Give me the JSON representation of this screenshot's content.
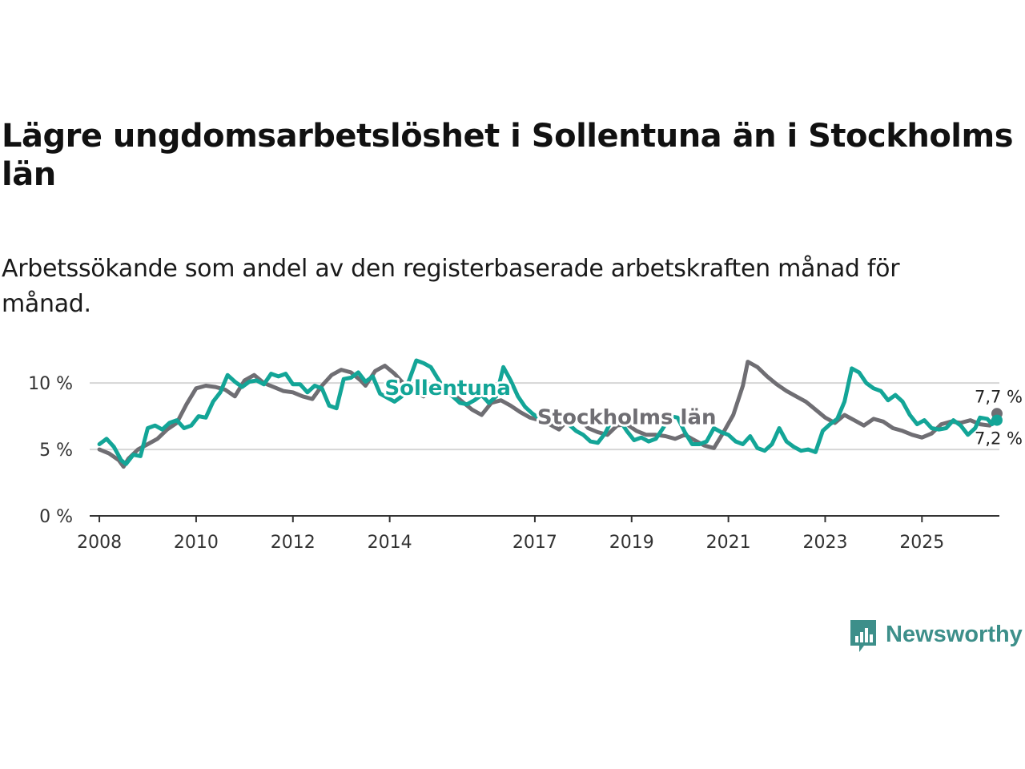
{
  "title": "Lägre ungdomsarbetslöshet i Sollentuna än i Stockholms län",
  "subtitle": "Arbetssökande som andel av den registerbaserade arbetskraften månad för månad.",
  "brand": {
    "name": "Newsworthy"
  },
  "chart_data": {
    "type": "line",
    "title": "Lägre ungdomsarbetslöshet i Sollentuna än i Stockholms län",
    "subtitle": "Arbetssökande som andel av den registerbaserade arbetskraften månad för månad.",
    "xlabel": "",
    "ylabel": "",
    "xlim": [
      2007.8,
      2026.6
    ],
    "ylim": [
      0,
      12
    ],
    "grid": true,
    "y_ticks": [
      {
        "value": 0,
        "label": "0 %"
      },
      {
        "value": 5,
        "label": "5 %"
      },
      {
        "value": 10,
        "label": "10 %"
      }
    ],
    "x_ticks": [
      {
        "value": 2008,
        "label": "2008"
      },
      {
        "value": 2010,
        "label": "2010"
      },
      {
        "value": 2012,
        "label": "2012"
      },
      {
        "value": 2014,
        "label": "2014"
      },
      {
        "value": 2017,
        "label": "2017"
      },
      {
        "value": 2019,
        "label": "2019"
      },
      {
        "value": 2021,
        "label": "2021"
      },
      {
        "value": 2023,
        "label": "2023"
      },
      {
        "value": 2025,
        "label": "2025"
      }
    ],
    "series": [
      {
        "name": "Stockholms län",
        "color": "#6f6e73",
        "label_x": 2018.9,
        "label_y": 6.9,
        "end_label": "7,7 %",
        "points": [
          [
            2008.0,
            5.0
          ],
          [
            2008.2,
            4.7
          ],
          [
            2008.4,
            4.2
          ],
          [
            2008.5,
            3.7
          ],
          [
            2008.6,
            4.3
          ],
          [
            2008.8,
            5.0
          ],
          [
            2009.0,
            5.4
          ],
          [
            2009.2,
            5.8
          ],
          [
            2009.4,
            6.5
          ],
          [
            2009.6,
            7.0
          ],
          [
            2009.8,
            8.4
          ],
          [
            2010.0,
            9.6
          ],
          [
            2010.2,
            9.8
          ],
          [
            2010.4,
            9.7
          ],
          [
            2010.6,
            9.5
          ],
          [
            2010.8,
            9.0
          ],
          [
            2011.0,
            10.2
          ],
          [
            2011.2,
            10.6
          ],
          [
            2011.4,
            10.0
          ],
          [
            2011.6,
            9.7
          ],
          [
            2011.8,
            9.4
          ],
          [
            2012.0,
            9.3
          ],
          [
            2012.2,
            9.0
          ],
          [
            2012.4,
            8.8
          ],
          [
            2012.6,
            9.8
          ],
          [
            2012.8,
            10.6
          ],
          [
            2013.0,
            11.0
          ],
          [
            2013.2,
            10.8
          ],
          [
            2013.4,
            10.2
          ],
          [
            2013.5,
            9.8
          ],
          [
            2013.7,
            10.9
          ],
          [
            2013.9,
            11.3
          ],
          [
            2014.1,
            10.7
          ],
          [
            2014.3,
            9.9
          ],
          [
            2014.5,
            9.4
          ],
          [
            2014.7,
            9.0
          ],
          [
            2014.9,
            9.6
          ],
          [
            2015.1,
            9.8
          ],
          [
            2015.3,
            9.2
          ],
          [
            2015.5,
            8.6
          ],
          [
            2015.7,
            8.0
          ],
          [
            2015.9,
            7.6
          ],
          [
            2016.1,
            8.5
          ],
          [
            2016.3,
            8.7
          ],
          [
            2016.5,
            8.3
          ],
          [
            2016.7,
            7.8
          ],
          [
            2016.9,
            7.4
          ],
          [
            2017.1,
            7.2
          ],
          [
            2017.3,
            6.9
          ],
          [
            2017.5,
            6.5
          ],
          [
            2017.7,
            7.3
          ],
          [
            2017.9,
            7.5
          ],
          [
            2018.1,
            6.6
          ],
          [
            2018.3,
            6.3
          ],
          [
            2018.5,
            6.1
          ],
          [
            2018.7,
            6.8
          ],
          [
            2018.9,
            6.9
          ],
          [
            2019.1,
            6.4
          ],
          [
            2019.3,
            6.1
          ],
          [
            2019.5,
            6.1
          ],
          [
            2019.7,
            6.0
          ],
          [
            2019.9,
            5.8
          ],
          [
            2020.1,
            6.1
          ],
          [
            2020.3,
            5.7
          ],
          [
            2020.5,
            5.3
          ],
          [
            2020.7,
            5.1
          ],
          [
            2020.9,
            6.3
          ],
          [
            2021.1,
            7.6
          ],
          [
            2021.3,
            9.8
          ],
          [
            2021.4,
            11.6
          ],
          [
            2021.6,
            11.2
          ],
          [
            2021.8,
            10.5
          ],
          [
            2022.0,
            9.9
          ],
          [
            2022.2,
            9.4
          ],
          [
            2022.4,
            9.0
          ],
          [
            2022.6,
            8.6
          ],
          [
            2022.8,
            8.0
          ],
          [
            2023.0,
            7.4
          ],
          [
            2023.2,
            7.0
          ],
          [
            2023.4,
            7.6
          ],
          [
            2023.6,
            7.2
          ],
          [
            2023.8,
            6.8
          ],
          [
            2024.0,
            7.3
          ],
          [
            2024.2,
            7.1
          ],
          [
            2024.4,
            6.6
          ],
          [
            2024.6,
            6.4
          ],
          [
            2024.8,
            6.1
          ],
          [
            2025.0,
            5.9
          ],
          [
            2025.2,
            6.2
          ],
          [
            2025.4,
            6.9
          ],
          [
            2025.6,
            7.1
          ],
          [
            2025.8,
            7.0
          ],
          [
            2026.0,
            7.2
          ],
          [
            2026.2,
            6.9
          ],
          [
            2026.4,
            6.8
          ],
          [
            2026.55,
            7.7
          ]
        ]
      },
      {
        "name": "Sollentuna",
        "color": "#13a597",
        "label_x": 2015.2,
        "label_y": 9.1,
        "end_label": "7,2 %",
        "points": [
          [
            2008.0,
            5.4
          ],
          [
            2008.15,
            5.8
          ],
          [
            2008.3,
            5.2
          ],
          [
            2008.45,
            4.2
          ],
          [
            2008.55,
            3.9
          ],
          [
            2008.7,
            4.6
          ],
          [
            2008.85,
            4.5
          ],
          [
            2009.0,
            6.6
          ],
          [
            2009.15,
            6.8
          ],
          [
            2009.3,
            6.5
          ],
          [
            2009.45,
            7.0
          ],
          [
            2009.6,
            7.2
          ],
          [
            2009.75,
            6.6
          ],
          [
            2009.9,
            6.8
          ],
          [
            2010.05,
            7.5
          ],
          [
            2010.2,
            7.4
          ],
          [
            2010.35,
            8.6
          ],
          [
            2010.5,
            9.3
          ],
          [
            2010.65,
            10.6
          ],
          [
            2010.8,
            10.1
          ],
          [
            2010.95,
            9.7
          ],
          [
            2011.1,
            10.1
          ],
          [
            2011.25,
            10.2
          ],
          [
            2011.4,
            9.9
          ],
          [
            2011.55,
            10.7
          ],
          [
            2011.7,
            10.5
          ],
          [
            2011.85,
            10.7
          ],
          [
            2012.0,
            9.9
          ],
          [
            2012.15,
            9.9
          ],
          [
            2012.3,
            9.3
          ],
          [
            2012.45,
            9.8
          ],
          [
            2012.6,
            9.6
          ],
          [
            2012.75,
            8.3
          ],
          [
            2012.9,
            8.1
          ],
          [
            2013.05,
            10.3
          ],
          [
            2013.2,
            10.4
          ],
          [
            2013.35,
            10.8
          ],
          [
            2013.5,
            10.1
          ],
          [
            2013.65,
            10.5
          ],
          [
            2013.8,
            9.2
          ],
          [
            2013.95,
            8.9
          ],
          [
            2014.1,
            8.6
          ],
          [
            2014.25,
            9.0
          ],
          [
            2014.4,
            10.2
          ],
          [
            2014.55,
            11.7
          ],
          [
            2014.7,
            11.5
          ],
          [
            2014.85,
            11.2
          ],
          [
            2015.0,
            10.3
          ],
          [
            2015.15,
            9.4
          ],
          [
            2015.3,
            9.0
          ],
          [
            2015.45,
            8.5
          ],
          [
            2015.6,
            8.4
          ],
          [
            2015.75,
            8.7
          ],
          [
            2015.9,
            9.1
          ],
          [
            2016.05,
            8.5
          ],
          [
            2016.2,
            9.0
          ],
          [
            2016.35,
            11.2
          ],
          [
            2016.5,
            10.2
          ],
          [
            2016.65,
            9.0
          ],
          [
            2016.8,
            8.2
          ],
          [
            2016.95,
            7.7
          ],
          [
            2017.1,
            7.3
          ],
          [
            2017.25,
            7.5
          ],
          [
            2017.4,
            7.9
          ],
          [
            2017.55,
            7.5
          ],
          [
            2017.7,
            6.9
          ],
          [
            2017.85,
            6.4
          ],
          [
            2018.0,
            6.1
          ],
          [
            2018.15,
            5.6
          ],
          [
            2018.3,
            5.5
          ],
          [
            2018.45,
            6.2
          ],
          [
            2018.6,
            7.3
          ],
          [
            2018.75,
            7.2
          ],
          [
            2018.9,
            6.4
          ],
          [
            2019.05,
            5.7
          ],
          [
            2019.2,
            5.9
          ],
          [
            2019.35,
            5.6
          ],
          [
            2019.5,
            5.8
          ],
          [
            2019.65,
            6.6
          ],
          [
            2019.8,
            7.5
          ],
          [
            2019.95,
            7.4
          ],
          [
            2020.1,
            6.3
          ],
          [
            2020.25,
            5.4
          ],
          [
            2020.4,
            5.4
          ],
          [
            2020.55,
            5.6
          ],
          [
            2020.7,
            6.6
          ],
          [
            2020.85,
            6.3
          ],
          [
            2021.0,
            6.1
          ],
          [
            2021.15,
            5.6
          ],
          [
            2021.3,
            5.4
          ],
          [
            2021.45,
            6.0
          ],
          [
            2021.6,
            5.1
          ],
          [
            2021.75,
            4.9
          ],
          [
            2021.9,
            5.4
          ],
          [
            2022.05,
            6.6
          ],
          [
            2022.2,
            5.6
          ],
          [
            2022.35,
            5.2
          ],
          [
            2022.5,
            4.9
          ],
          [
            2022.65,
            5.0
          ],
          [
            2022.8,
            4.8
          ],
          [
            2022.95,
            6.4
          ],
          [
            2023.1,
            6.9
          ],
          [
            2023.25,
            7.3
          ],
          [
            2023.4,
            8.6
          ],
          [
            2023.55,
            11.1
          ],
          [
            2023.7,
            10.8
          ],
          [
            2023.85,
            10.0
          ],
          [
            2024.0,
            9.6
          ],
          [
            2024.15,
            9.4
          ],
          [
            2024.3,
            8.7
          ],
          [
            2024.45,
            9.1
          ],
          [
            2024.6,
            8.6
          ],
          [
            2024.75,
            7.6
          ],
          [
            2024.9,
            6.9
          ],
          [
            2025.05,
            7.2
          ],
          [
            2025.2,
            6.6
          ],
          [
            2025.35,
            6.5
          ],
          [
            2025.5,
            6.6
          ],
          [
            2025.65,
            7.2
          ],
          [
            2025.8,
            6.8
          ],
          [
            2025.95,
            6.1
          ],
          [
            2026.1,
            6.6
          ],
          [
            2026.2,
            7.4
          ],
          [
            2026.35,
            7.3
          ],
          [
            2026.45,
            6.9
          ],
          [
            2026.55,
            7.2
          ]
        ]
      }
    ]
  }
}
